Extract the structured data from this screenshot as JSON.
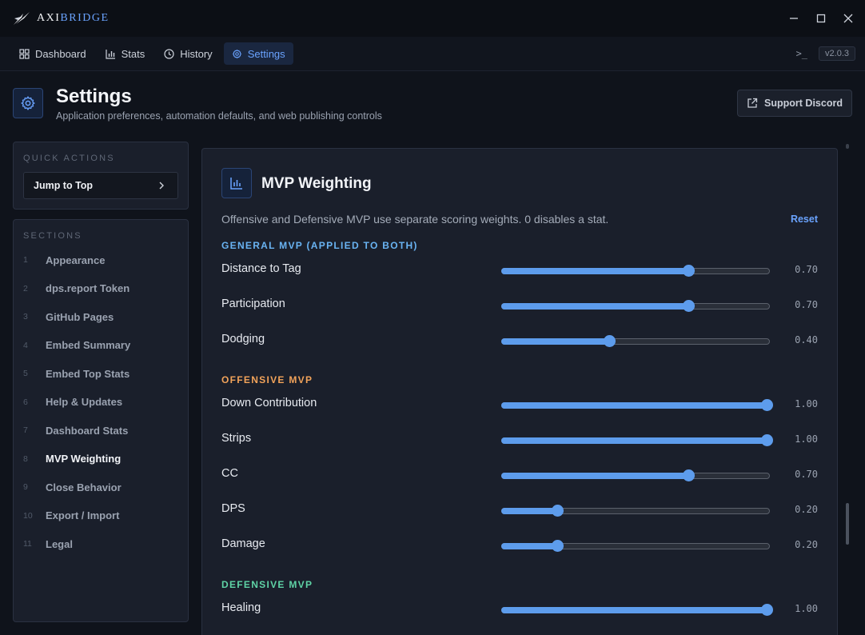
{
  "app": {
    "logo_part_a": "AXI",
    "logo_part_b": "BRIDGE",
    "version": "v2.0.3",
    "terminal_glyph": ">_"
  },
  "nav": {
    "tabs": [
      {
        "label": "Dashboard",
        "icon": "grid-icon"
      },
      {
        "label": "Stats",
        "icon": "bar-chart-icon"
      },
      {
        "label": "History",
        "icon": "clock-icon"
      },
      {
        "label": "Settings",
        "icon": "gear-icon",
        "active": true
      }
    ]
  },
  "header": {
    "title": "Settings",
    "subtitle": "Application preferences, automation defaults, and web publishing controls",
    "discord_label": "Support Discord"
  },
  "sidebar": {
    "quick_actions_label": "QUICK ACTIONS",
    "jump_label": "Jump to Top",
    "sections_label": "SECTIONS",
    "items": [
      {
        "num": "1",
        "label": "Appearance"
      },
      {
        "num": "2",
        "label": "dps.report Token"
      },
      {
        "num": "3",
        "label": "GitHub Pages"
      },
      {
        "num": "4",
        "label": "Embed Summary"
      },
      {
        "num": "5",
        "label": "Embed Top Stats"
      },
      {
        "num": "6",
        "label": "Help & Updates"
      },
      {
        "num": "7",
        "label": "Dashboard Stats"
      },
      {
        "num": "8",
        "label": "MVP Weighting",
        "active": true
      },
      {
        "num": "9",
        "label": "Close Behavior"
      },
      {
        "num": "10",
        "label": "Export / Import"
      },
      {
        "num": "11",
        "label": "Legal"
      }
    ]
  },
  "mvp": {
    "title": "MVP Weighting",
    "description": "Offensive and Defensive MVP use separate scoring weights. 0 disables a stat.",
    "reset_label": "Reset",
    "groups": [
      {
        "label": "GENERAL MVP (APPLIED TO BOTH)",
        "color": "#69b3f2",
        "rows": [
          {
            "label": "Distance to Tag",
            "value": 0.7,
            "display": "0.70"
          },
          {
            "label": "Participation",
            "value": 0.7,
            "display": "0.70"
          },
          {
            "label": "Dodging",
            "value": 0.4,
            "display": "0.40"
          }
        ]
      },
      {
        "label": "OFFENSIVE MVP",
        "color": "#f2a35a",
        "rows": [
          {
            "label": "Down Contribution",
            "value": 1.0,
            "display": "1.00"
          },
          {
            "label": "Strips",
            "value": 1.0,
            "display": "1.00"
          },
          {
            "label": "CC",
            "value": 0.7,
            "display": "0.70"
          },
          {
            "label": "DPS",
            "value": 0.2,
            "display": "0.20"
          },
          {
            "label": "Damage",
            "value": 0.2,
            "display": "0.20"
          }
        ]
      },
      {
        "label": "DEFENSIVE MVP",
        "color": "#5fd3a6",
        "rows": [
          {
            "label": "Healing",
            "value": 1.0,
            "display": "1.00"
          }
        ]
      }
    ]
  }
}
